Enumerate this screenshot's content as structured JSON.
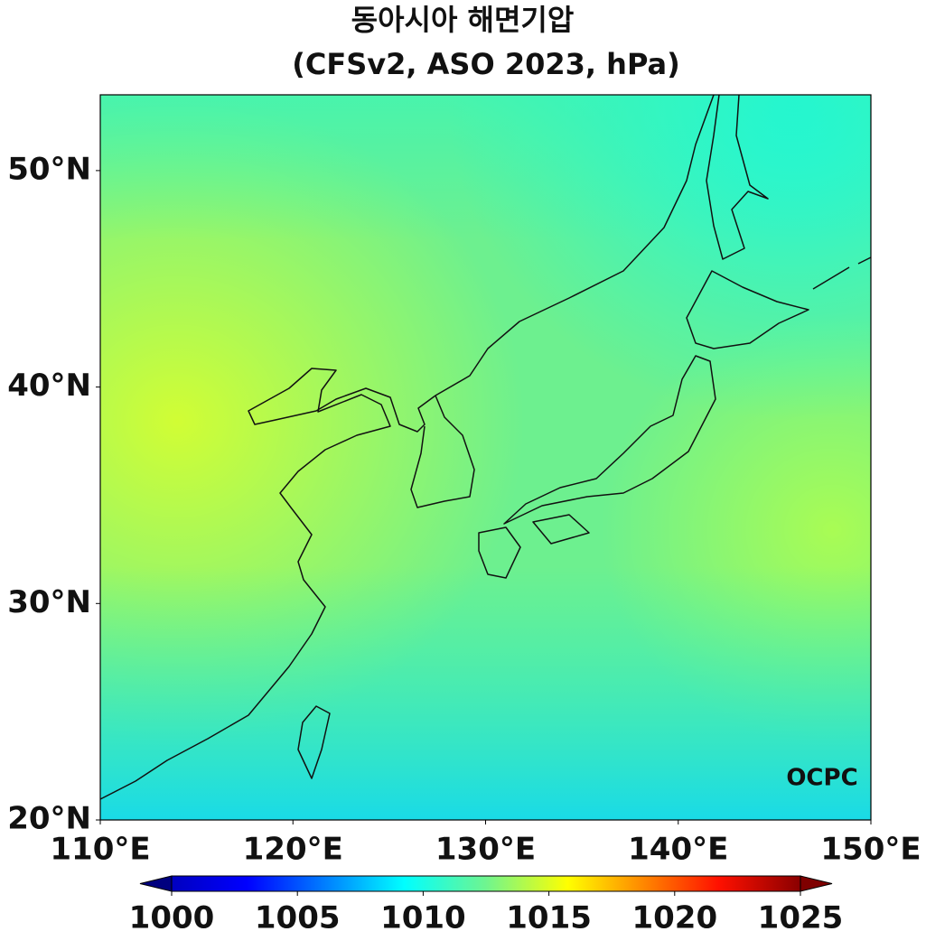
{
  "title": "동아시아 해면기압",
  "subtitle": "(CFSv2, ASO 2023, hPa)",
  "map": {
    "xlim": [
      110,
      150
    ],
    "ylim": [
      20,
      53.5
    ],
    "xticks": [
      {
        "value": 110,
        "label": "110°E"
      },
      {
        "value": 120,
        "label": "120°E"
      },
      {
        "value": 130,
        "label": "130°E"
      },
      {
        "value": 140,
        "label": "140°E"
      },
      {
        "value": 150,
        "label": "150°E"
      }
    ],
    "yticks": [
      {
        "value": 20,
        "label": "20°N"
      },
      {
        "value": 30,
        "label": "30°N"
      },
      {
        "value": 40,
        "label": "40°N"
      },
      {
        "value": 50,
        "label": "50°N"
      }
    ]
  },
  "colorbar": {
    "lim": [
      1000,
      1025
    ],
    "ticks": [
      1000,
      1005,
      1010,
      1015,
      1020,
      1025
    ]
  },
  "logo": "OCPC"
}
